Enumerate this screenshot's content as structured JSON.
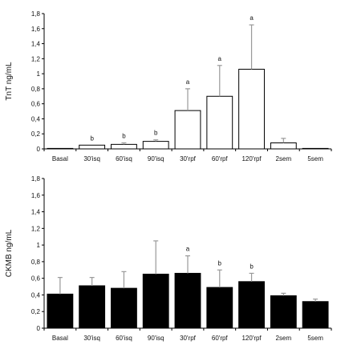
{
  "chart_data": [
    {
      "type": "bar",
      "categories": [
        "Basal",
        "30'isq",
        "60'isq",
        "90'isq",
        "30'rpf",
        "60'rpf",
        "120'rpf",
        "2sem",
        "5sem"
      ],
      "values": [
        0.005,
        0.05,
        0.06,
        0.1,
        0.51,
        0.7,
        1.06,
        0.08,
        0.0
      ],
      "errors": [
        0,
        0,
        0.02,
        0.02,
        0.29,
        0.41,
        0.59,
        0.06,
        0
      ],
      "significance": [
        "",
        "b",
        "b",
        "b",
        "a",
        "a",
        "a",
        "",
        ""
      ],
      "ylabel": "TnT ng/mL",
      "xlabel": "",
      "ylim": [
        0,
        1.8
      ],
      "yticks": [
        "0",
        "0,2",
        "0,4",
        "0,6",
        "0,8",
        "1",
        "1,2",
        "1,4",
        "1,6",
        "1,8"
      ],
      "bar_fill": "#ffffff",
      "bar_stroke": "#000000",
      "error_color": "#999999"
    },
    {
      "type": "bar",
      "categories": [
        "Basal",
        "30'isq",
        "60'isq",
        "90'isq",
        "30'rpf",
        "60'rpf",
        "120'rpf",
        "2sem",
        "5sem"
      ],
      "values": [
        0.41,
        0.51,
        0.48,
        0.65,
        0.66,
        0.49,
        0.56,
        0.39,
        0.32
      ],
      "errors": [
        0.2,
        0.1,
        0.2,
        0.4,
        0.21,
        0.21,
        0.1,
        0.03,
        0.03
      ],
      "significance": [
        "",
        "",
        "",
        "",
        "a",
        "b",
        "b",
        "",
        ""
      ],
      "ylabel": "CKMB ng/mL",
      "xlabel": "",
      "ylim": [
        0,
        1.8
      ],
      "yticks": [
        "0",
        "0,2",
        "0,4",
        "0,6",
        "0,8",
        "1",
        "1,2",
        "1,4",
        "1,6",
        "1,8"
      ],
      "bar_fill": "#000000",
      "bar_stroke": "#000000",
      "error_color": "#999999"
    }
  ]
}
